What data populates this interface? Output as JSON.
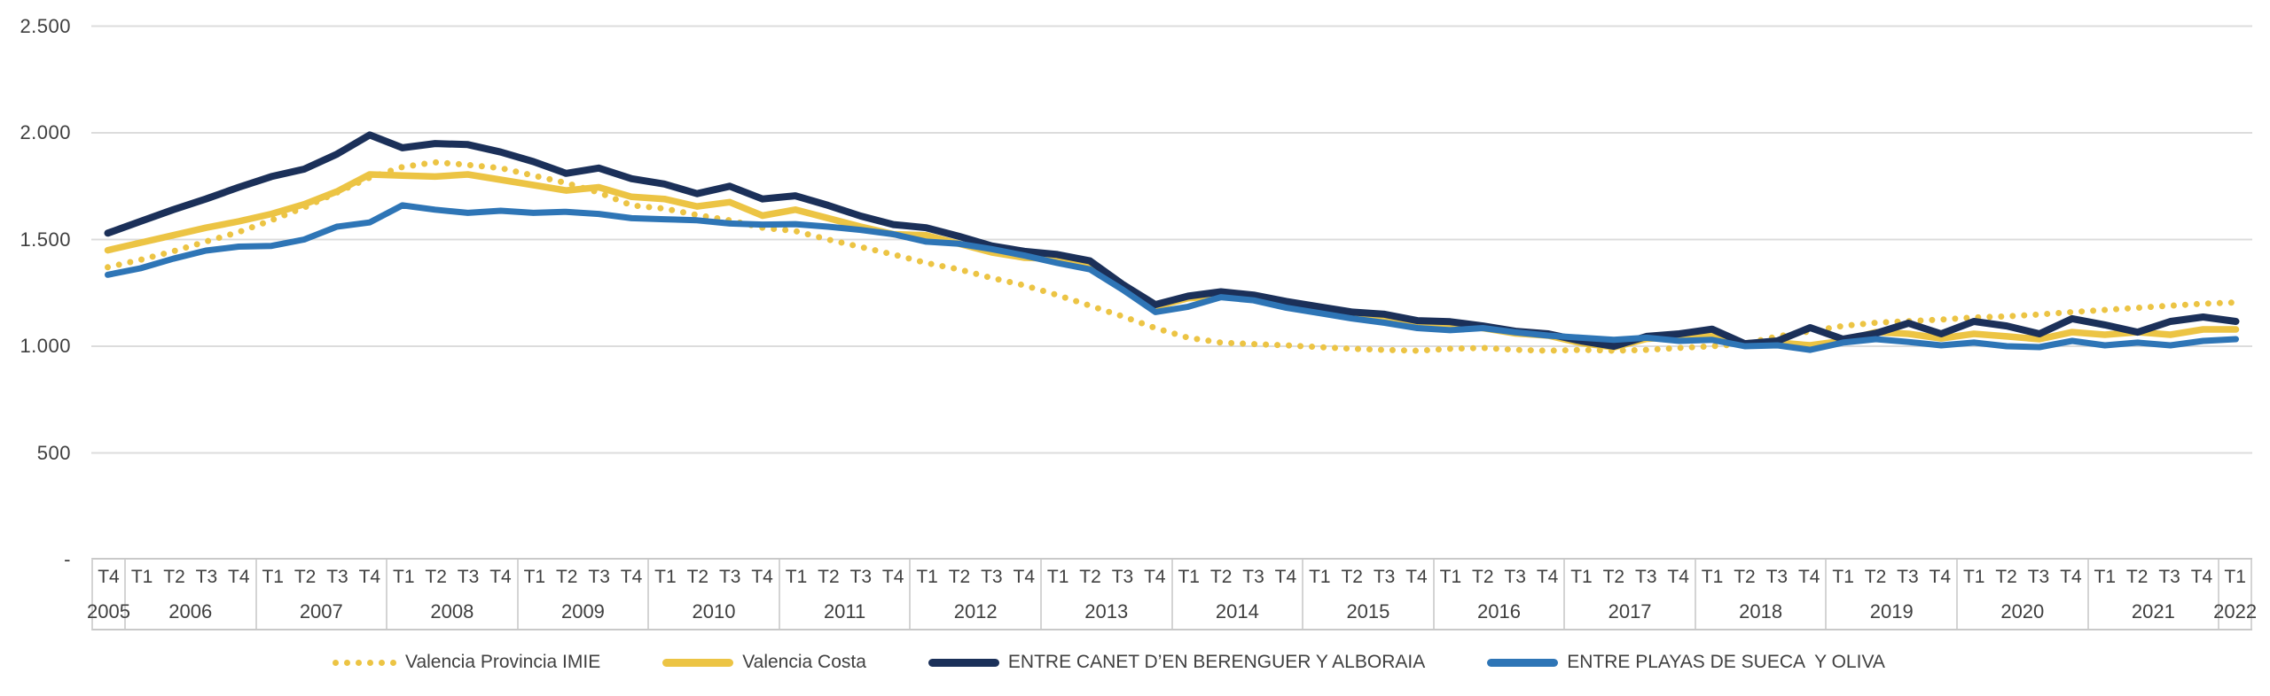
{
  "page": {
    "background": "#ffffff"
  },
  "chart_data": {
    "type": "line",
    "title": "",
    "xlabel": "",
    "ylabel": "",
    "grid": true,
    "legend_position": "bottom",
    "ylim": [
      0,
      2500
    ],
    "y_axis": {
      "ticks": [
        {
          "label": "-",
          "value": 0
        },
        {
          "label": "500",
          "value": 500
        },
        {
          "label": "1.000",
          "value": 1000
        },
        {
          "label": "1.500",
          "value": 1500
        },
        {
          "label": "2.000",
          "value": 2000
        },
        {
          "label": "2.500",
          "value": 2500
        }
      ]
    },
    "x_axis": {
      "years": [
        {
          "label": "2005",
          "quarters": [
            "T4"
          ]
        },
        {
          "label": "2006",
          "quarters": [
            "T1",
            "T2",
            "T3",
            "T4"
          ]
        },
        {
          "label": "2007",
          "quarters": [
            "T1",
            "T2",
            "T3",
            "T4"
          ]
        },
        {
          "label": "2008",
          "quarters": [
            "T1",
            "T2",
            "T3",
            "T4"
          ]
        },
        {
          "label": "2009",
          "quarters": [
            "T1",
            "T2",
            "T3",
            "T4"
          ]
        },
        {
          "label": "2010",
          "quarters": [
            "T1",
            "T2",
            "T3",
            "T4"
          ]
        },
        {
          "label": "2011",
          "quarters": [
            "T1",
            "T2",
            "T3",
            "T4"
          ]
        },
        {
          "label": "2012",
          "quarters": [
            "T1",
            "T2",
            "T3",
            "T4"
          ]
        },
        {
          "label": "2013",
          "quarters": [
            "T1",
            "T2",
            "T3",
            "T4"
          ]
        },
        {
          "label": "2014",
          "quarters": [
            "T1",
            "T2",
            "T3",
            "T4"
          ]
        },
        {
          "label": "2015",
          "quarters": [
            "T1",
            "T2",
            "T3",
            "T4"
          ]
        },
        {
          "label": "2016",
          "quarters": [
            "T1",
            "T2",
            "T3",
            "T4"
          ]
        },
        {
          "label": "2017",
          "quarters": [
            "T1",
            "T2",
            "T3",
            "T4"
          ]
        },
        {
          "label": "2018",
          "quarters": [
            "T1",
            "T2",
            "T3",
            "T4"
          ]
        },
        {
          "label": "2019",
          "quarters": [
            "T1",
            "T2",
            "T3",
            "T4"
          ]
        },
        {
          "label": "2020",
          "quarters": [
            "T1",
            "T2",
            "T3",
            "T4"
          ]
        },
        {
          "label": "2021",
          "quarters": [
            "T1",
            "T2",
            "T3",
            "T4"
          ]
        },
        {
          "label": "2022",
          "quarters": [
            "T1"
          ]
        }
      ]
    },
    "series": [
      {
        "name": "Valencia Provincia IMIE",
        "color": "#ecc444",
        "style": "dotted",
        "values": [
          1370,
          1405,
          1445,
          1490,
          1535,
          1590,
          1650,
          1720,
          1790,
          1840,
          1862,
          1850,
          1835,
          1800,
          1765,
          1720,
          1660,
          1645,
          1615,
          1590,
          1555,
          1540,
          1500,
          1465,
          1430,
          1390,
          1360,
          1320,
          1285,
          1240,
          1190,
          1140,
          1085,
          1040,
          1017,
          1010,
          1004,
          996,
          988,
          983,
          979,
          988,
          992,
          983,
          979,
          983,
          979,
          983,
          992,
          1000,
          1012,
          1046,
          1070,
          1095,
          1110,
          1118,
          1125,
          1135,
          1140,
          1149,
          1160,
          1170,
          1180,
          1190,
          1199,
          1205
        ]
      },
      {
        "name": "Valencia Costa",
        "color": "#ecc444",
        "style": "solid",
        "values": [
          1450,
          1485,
          1520,
          1555,
          1585,
          1620,
          1665,
          1725,
          1805,
          1800,
          1795,
          1805,
          1780,
          1755,
          1730,
          1745,
          1700,
          1690,
          1655,
          1675,
          1612,
          1640,
          1600,
          1560,
          1525,
          1520,
          1480,
          1440,
          1415,
          1410,
          1380,
          1270,
          1185,
          1225,
          1235,
          1225,
          1195,
          1170,
          1150,
          1140,
          1110,
          1105,
          1085,
          1060,
          1050,
          1015,
          995,
          1035,
          1045,
          1060,
          1005,
          1017,
          1004,
          1025,
          1066,
          1058,
          1037,
          1058,
          1046,
          1033,
          1066,
          1054,
          1066,
          1054,
          1079,
          1079
        ]
      },
      {
        "name": "ENTRE CANET D’EN BERENGUER Y ALBORAIA",
        "color": "#1b3059",
        "style": "solid",
        "values": [
          1530,
          1585,
          1640,
          1690,
          1745,
          1795,
          1830,
          1900,
          1990,
          1930,
          1950,
          1945,
          1910,
          1865,
          1810,
          1835,
          1785,
          1760,
          1715,
          1750,
          1690,
          1705,
          1660,
          1610,
          1570,
          1555,
          1515,
          1470,
          1445,
          1430,
          1400,
          1290,
          1195,
          1235,
          1255,
          1240,
          1210,
          1185,
          1160,
          1150,
          1120,
          1115,
          1095,
          1070,
          1058,
          1025,
          1000,
          1046,
          1058,
          1080,
          1012,
          1025,
          1087,
          1033,
          1060,
          1108,
          1058,
          1116,
          1095,
          1058,
          1129,
          1100,
          1066,
          1116,
          1137,
          1116
        ]
      },
      {
        "name": "ENTRE PLAYAS DE SUECA  Y OLIVA",
        "color": "#2e75b6",
        "style": "solid",
        "values": [
          1335,
          1365,
          1410,
          1448,
          1467,
          1470,
          1500,
          1560,
          1580,
          1660,
          1640,
          1625,
          1635,
          1625,
          1630,
          1620,
          1600,
          1595,
          1590,
          1575,
          1570,
          1572,
          1560,
          1545,
          1525,
          1490,
          1480,
          1455,
          1425,
          1390,
          1360,
          1265,
          1160,
          1185,
          1230,
          1215,
          1180,
          1155,
          1130,
          1110,
          1085,
          1075,
          1085,
          1065,
          1050,
          1040,
          1030,
          1040,
          1025,
          1030,
          1000,
          1004,
          983,
          1017,
          1033,
          1020,
          1004,
          1017,
          1000,
          996,
          1025,
          1004,
          1017,
          1004,
          1025,
          1033
        ]
      }
    ],
    "colors": {
      "gridline": "#dcdcdc",
      "axis_border": "#c9c9c9",
      "text": "#3f3f3f"
    }
  }
}
